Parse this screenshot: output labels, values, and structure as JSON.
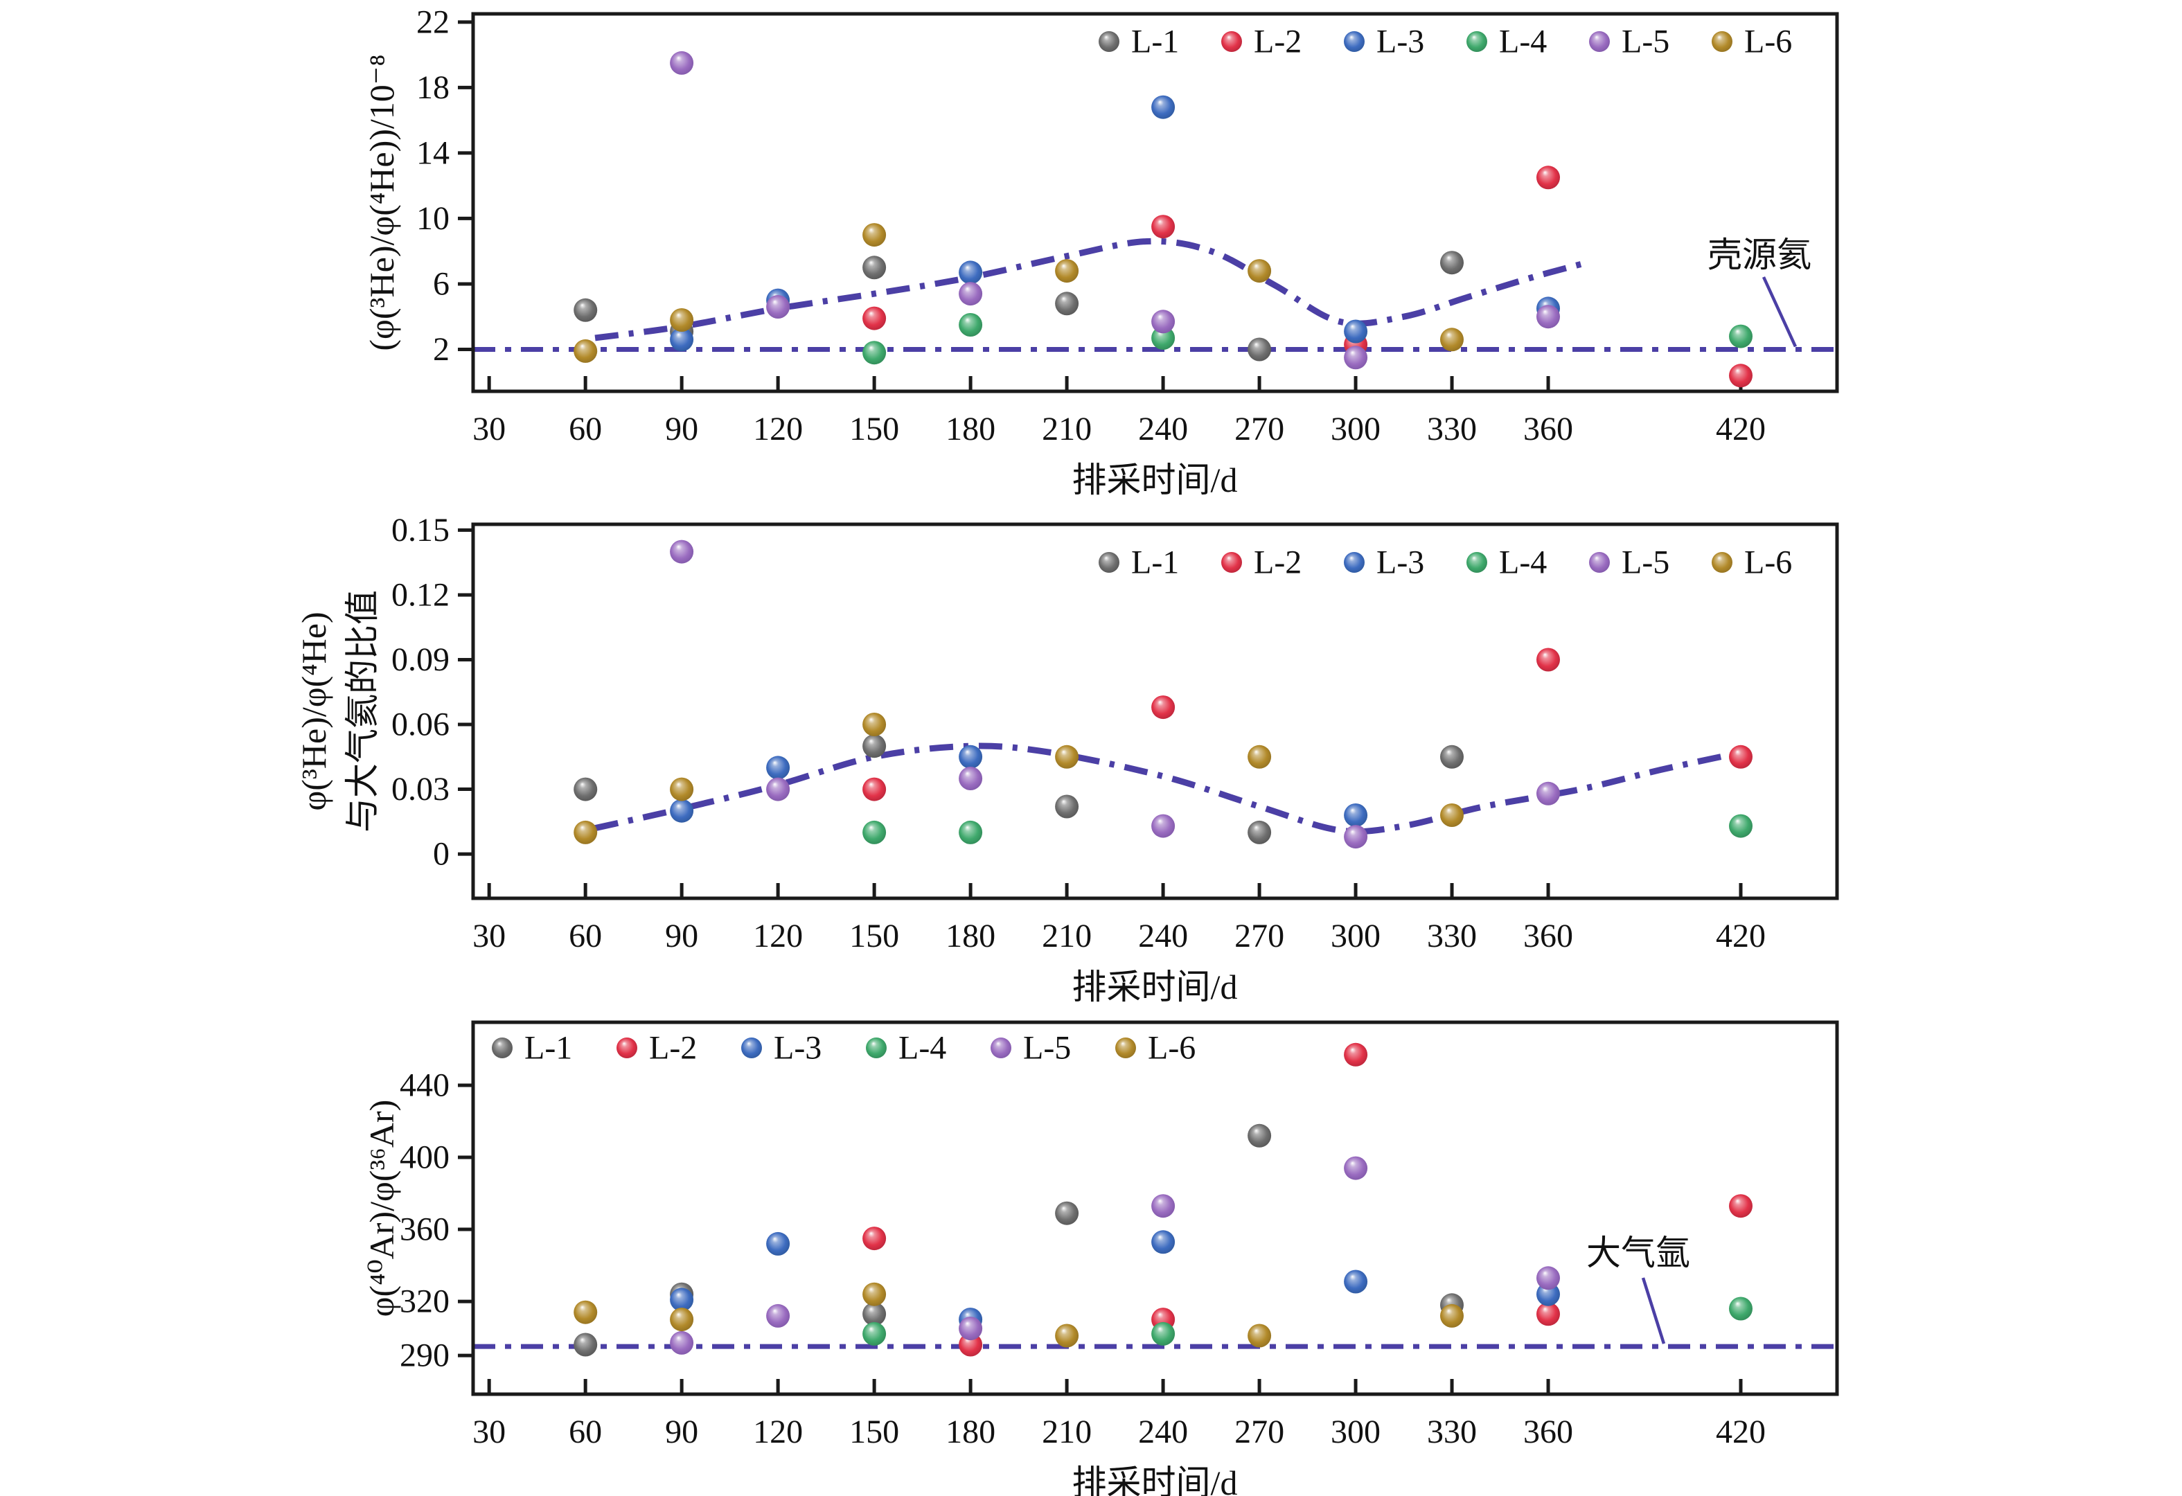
{
  "figure": {
    "background": "#ffffff",
    "axis_color": "#1a1a1a",
    "trend_color": "#4b3fa5",
    "series_colors": {
      "L-1": "#6f6f6f",
      "L-2": "#e23349",
      "L-3": "#3e6cc0",
      "L-4": "#3fa96c",
      "L-5": "#9a6cc0",
      "L-6": "#b28a2a"
    },
    "series_dark": {
      "L-1": "#4a4a4a",
      "L-2": "#a81f33",
      "L-3": "#27508f",
      "L-4": "#2a7c4e",
      "L-5": "#744e9e",
      "L-6": "#85661c"
    }
  },
  "chart_data": [
    {
      "type": "scatter",
      "ylabel": "(φ(³He)/φ(⁴He))/10⁻⁸",
      "xlabel": "排采时间/d",
      "xticks": [
        30,
        60,
        90,
        120,
        150,
        180,
        210,
        240,
        270,
        300,
        330,
        360,
        420
      ],
      "yticks": [
        2,
        6,
        10,
        14,
        18,
        22
      ],
      "ytick_labels": [
        "2",
        "6",
        "10",
        "14",
        "18",
        "22"
      ],
      "xlim": [
        25,
        450
      ],
      "ylim": [
        -0.56,
        22.5
      ],
      "grid": false,
      "legend": {
        "position": "top-right",
        "labels": [
          "L-1",
          "L-2",
          "L-3",
          "L-4",
          "L-5",
          "L-6"
        ]
      },
      "refline": {
        "value": 2,
        "label": "壳源氦"
      },
      "series": [
        {
          "name": "L-1",
          "points": [
            [
              60,
              4.4
            ],
            [
              90,
              3.1
            ],
            [
              150,
              7.0
            ],
            [
              210,
              4.8
            ],
            [
              270,
              2.0
            ],
            [
              330,
              7.3
            ]
          ]
        },
        {
          "name": "L-2",
          "points": [
            [
              150,
              3.9
            ],
            [
              240,
              9.5
            ],
            [
              300,
              2.3
            ],
            [
              360,
              12.5
            ],
            [
              420,
              0.4
            ]
          ]
        },
        {
          "name": "L-3",
          "points": [
            [
              90,
              2.6
            ],
            [
              120,
              5.0
            ],
            [
              180,
              6.7
            ],
            [
              240,
              16.8
            ],
            [
              300,
              3.1
            ],
            [
              360,
              4.5
            ]
          ]
        },
        {
          "name": "L-4",
          "points": [
            [
              150,
              1.8
            ],
            [
              180,
              3.5
            ],
            [
              240,
              2.7
            ],
            [
              420,
              2.8
            ]
          ]
        },
        {
          "name": "L-5",
          "points": [
            [
              90,
              19.5
            ],
            [
              120,
              4.6
            ],
            [
              180,
              5.4
            ],
            [
              240,
              3.7
            ],
            [
              300,
              1.5
            ],
            [
              360,
              4.0
            ]
          ]
        },
        {
          "name": "L-6",
          "points": [
            [
              60,
              1.9
            ],
            [
              90,
              3.8
            ],
            [
              150,
              9.0
            ],
            [
              210,
              6.8
            ],
            [
              270,
              6.8
            ],
            [
              330,
              2.6
            ]
          ]
        }
      ],
      "trend": [
        [
          63,
          2.7
        ],
        [
          90,
          3.4
        ],
        [
          120,
          4.5
        ],
        [
          150,
          5.4
        ],
        [
          180,
          6.4
        ],
        [
          210,
          7.7
        ],
        [
          235,
          8.6
        ],
        [
          255,
          8.0
        ],
        [
          275,
          5.9
        ],
        [
          295,
          3.7
        ],
        [
          315,
          4.0
        ],
        [
          335,
          5.2
        ],
        [
          355,
          6.4
        ],
        [
          372,
          7.3
        ]
      ]
    },
    {
      "type": "scatter",
      "ylabel_lines": [
        "φ(³He)/φ(⁴He)",
        "与大气氦的比值"
      ],
      "xlabel": "排采时间/d",
      "xticks": [
        30,
        60,
        90,
        120,
        150,
        180,
        210,
        240,
        270,
        300,
        330,
        360,
        420
      ],
      "yticks": [
        0,
        0.03,
        0.06,
        0.09,
        0.12,
        0.15
      ],
      "ytick_labels": [
        "0",
        "0.03",
        "0.06",
        "0.09",
        "0.12",
        "0.15"
      ],
      "xlim": [
        25,
        450
      ],
      "ylim": [
        -0.0205,
        0.1527
      ],
      "grid": false,
      "legend": {
        "position": "top-right",
        "labels": [
          "L-1",
          "L-2",
          "L-3",
          "L-4",
          "L-5",
          "L-6"
        ]
      },
      "refline": null,
      "series": [
        {
          "name": "L-1",
          "points": [
            [
              60,
              0.03
            ],
            [
              150,
              0.05
            ],
            [
              210,
              0.022
            ],
            [
              270,
              0.01
            ],
            [
              330,
              0.045
            ]
          ]
        },
        {
          "name": "L-2",
          "points": [
            [
              150,
              0.03
            ],
            [
              240,
              0.068
            ],
            [
              360,
              0.09
            ],
            [
              420,
              0.045
            ]
          ]
        },
        {
          "name": "L-3",
          "points": [
            [
              90,
              0.02
            ],
            [
              120,
              0.04
            ],
            [
              180,
              0.045
            ],
            [
              300,
              0.018
            ]
          ]
        },
        {
          "name": "L-4",
          "points": [
            [
              150,
              0.01
            ],
            [
              180,
              0.01
            ],
            [
              420,
              0.013
            ]
          ]
        },
        {
          "name": "L-5",
          "points": [
            [
              90,
              0.14
            ],
            [
              120,
              0.03
            ],
            [
              180,
              0.035
            ],
            [
              240,
              0.013
            ],
            [
              300,
              0.008
            ],
            [
              360,
              0.028
            ]
          ]
        },
        {
          "name": "L-6",
          "points": [
            [
              60,
              0.01
            ],
            [
              90,
              0.03
            ],
            [
              150,
              0.06
            ],
            [
              210,
              0.045
            ],
            [
              270,
              0.045
            ],
            [
              330,
              0.018
            ]
          ]
        }
      ],
      "trend": [
        [
          63,
          0.012
        ],
        [
          90,
          0.021
        ],
        [
          120,
          0.032
        ],
        [
          150,
          0.045
        ],
        [
          180,
          0.05
        ],
        [
          205,
          0.047
        ],
        [
          240,
          0.036
        ],
        [
          270,
          0.022
        ],
        [
          295,
          0.011
        ],
        [
          315,
          0.013
        ],
        [
          340,
          0.022
        ],
        [
          370,
          0.03
        ],
        [
          395,
          0.039
        ],
        [
          420,
          0.047
        ]
      ]
    },
    {
      "type": "scatter",
      "ylabel": "φ(⁴⁰Ar)/φ(³⁶Ar)",
      "xlabel": "排采时间/d",
      "xticks": [
        30,
        60,
        90,
        120,
        150,
        180,
        210,
        240,
        270,
        300,
        330,
        360,
        420
      ],
      "yticks": [
        290,
        320,
        360,
        400,
        440
      ],
      "ytick_labels": [
        "290",
        "320",
        "360",
        "400",
        "440"
      ],
      "xlim": [
        25,
        450
      ],
      "ylim": [
        268.5,
        475
      ],
      "grid": false,
      "legend": {
        "position": "top-left",
        "labels": [
          "L-1",
          "L-2",
          "L-3",
          "L-4",
          "L-5",
          "L-6"
        ]
      },
      "refline": {
        "value": 295,
        "label": "大气氩"
      },
      "series": [
        {
          "name": "L-1",
          "points": [
            [
              60,
              296
            ],
            [
              90,
              324
            ],
            [
              150,
              313
            ],
            [
              210,
              369
            ],
            [
              270,
              412
            ],
            [
              330,
              318
            ]
          ]
        },
        {
          "name": "L-2",
          "points": [
            [
              150,
              355
            ],
            [
              180,
              296
            ],
            [
              240,
              310
            ],
            [
              300,
              457
            ],
            [
              360,
              313
            ],
            [
              420,
              373
            ]
          ]
        },
        {
          "name": "L-3",
          "points": [
            [
              90,
              321
            ],
            [
              120,
              352
            ],
            [
              180,
              310
            ],
            [
              240,
              353
            ],
            [
              300,
              331
            ],
            [
              360,
              324
            ]
          ]
        },
        {
          "name": "L-4",
          "points": [
            [
              150,
              302
            ],
            [
              240,
              302
            ],
            [
              420,
              316
            ]
          ]
        },
        {
          "name": "L-5",
          "points": [
            [
              90,
              297
            ],
            [
              120,
              312
            ],
            [
              180,
              305
            ],
            [
              240,
              373
            ],
            [
              300,
              394
            ],
            [
              360,
              333
            ]
          ]
        },
        {
          "name": "L-6",
          "points": [
            [
              60,
              314
            ],
            [
              90,
              310
            ],
            [
              150,
              324
            ],
            [
              210,
              301
            ],
            [
              270,
              301
            ],
            [
              330,
              312
            ]
          ]
        }
      ],
      "trend": null
    }
  ]
}
